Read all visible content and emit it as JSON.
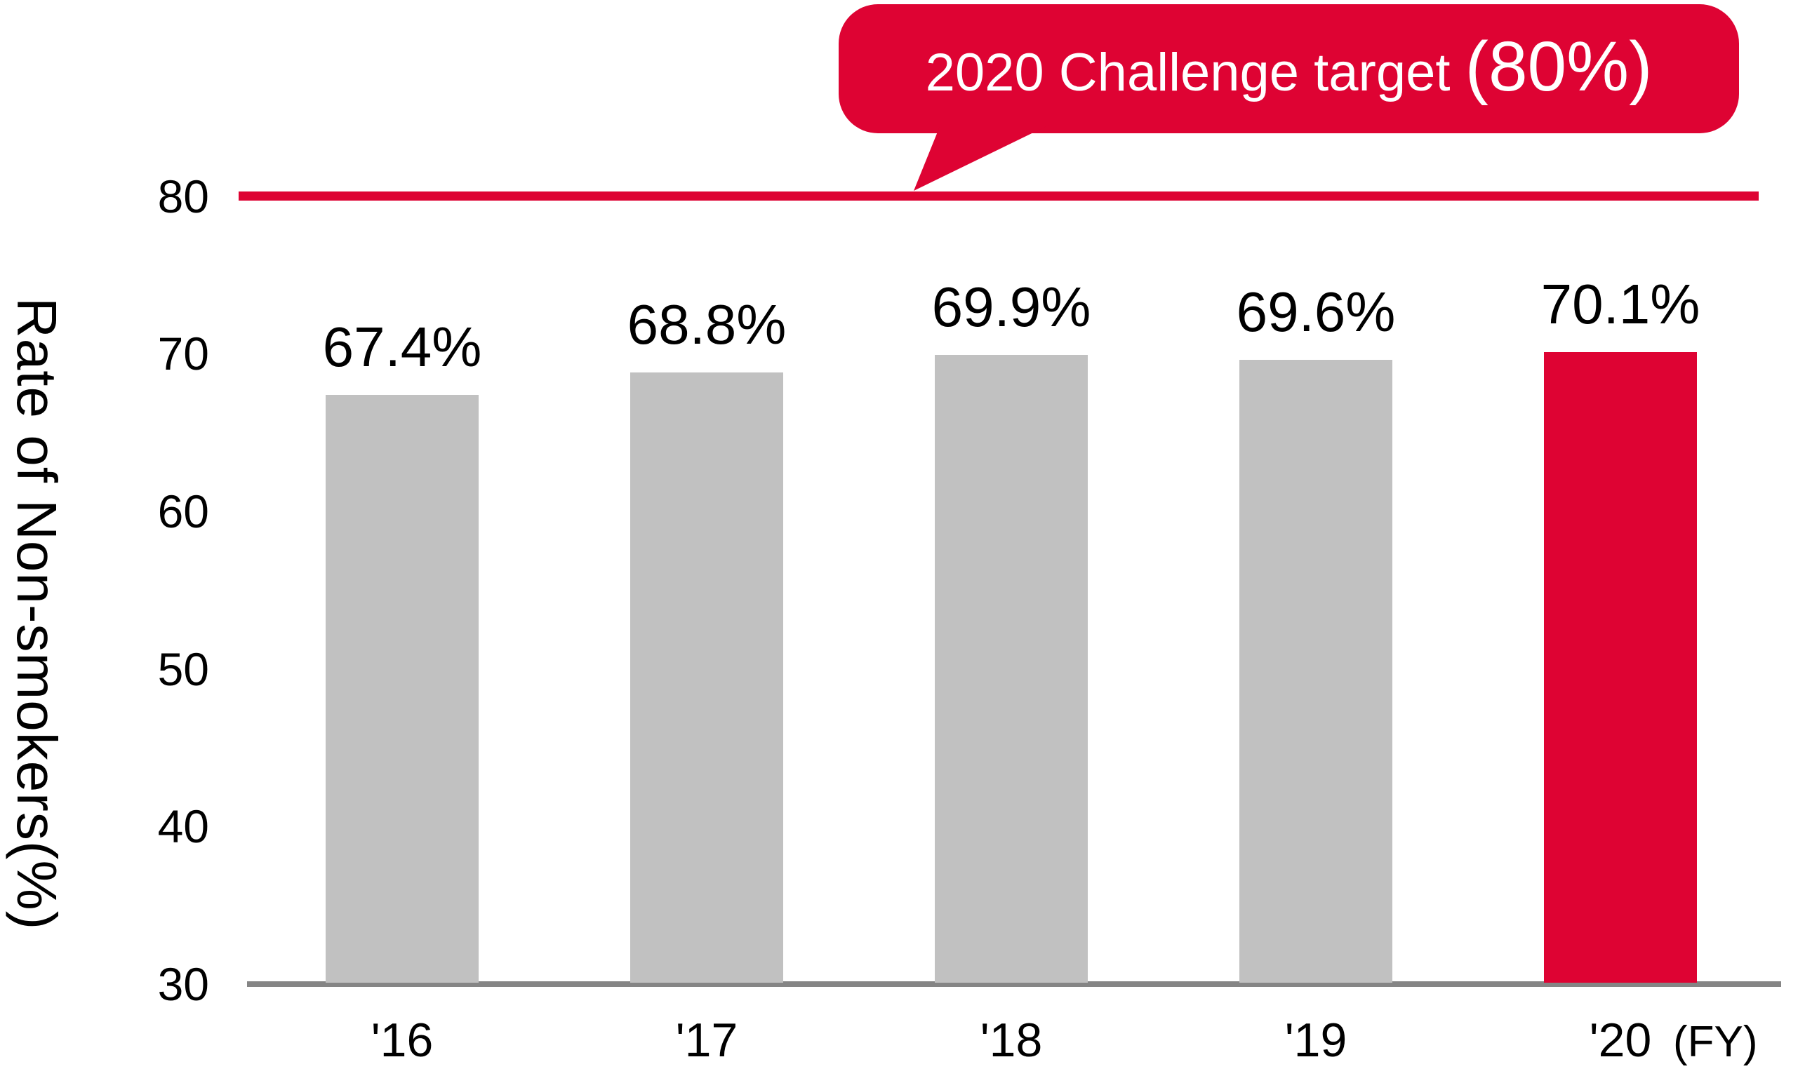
{
  "colors": {
    "accent_red": "#de0333",
    "bar_gray": "#c1c1c1",
    "axis_gray": "#858585",
    "text_black": "#000000",
    "bubble_text": "#ffffff",
    "background": "#ffffff"
  },
  "bubble": {
    "text_main": "2020 Challenge target ",
    "text_emph": "(80%)"
  },
  "chart_data": {
    "type": "bar",
    "title": "2020 Challenge target (80%)",
    "categories": [
      "'16",
      "'17",
      "'18",
      "'19",
      "'20"
    ],
    "values": [
      67.4,
      68.8,
      69.9,
      69.6,
      70.1
    ],
    "value_labels": [
      "67.4%",
      "68.8%",
      "69.9%",
      "69.6%",
      "70.1%"
    ],
    "bar_color_roles": [
      "gray",
      "gray",
      "gray",
      "gray",
      "red"
    ],
    "ylabel": "Rate of Non-smokers(%)",
    "xlabel_suffix": "(FY)",
    "ylim": [
      30,
      80
    ],
    "yticks": [
      30,
      40,
      50,
      60,
      70,
      80
    ],
    "target_value": 80,
    "grid": false,
    "legend": false,
    "target_line_color": "#de0333",
    "annotation": "2020 Challenge target (80%)"
  }
}
